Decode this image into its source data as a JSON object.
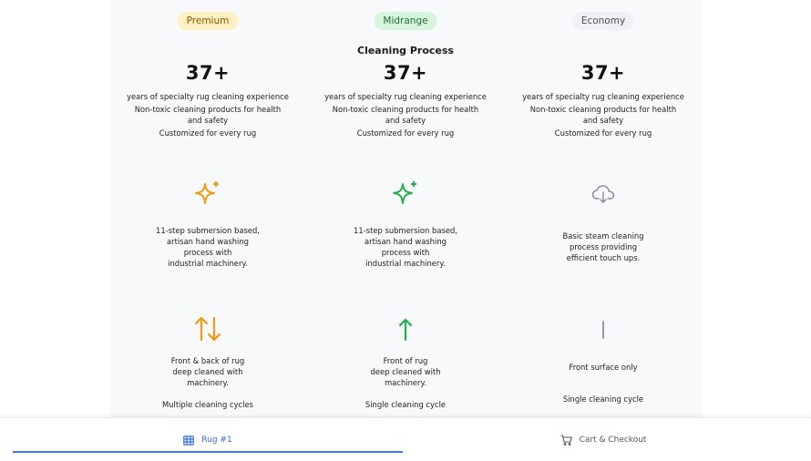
{
  "tiers": [
    {
      "badge": "Premium",
      "stat": "37+",
      "features": [
        "years of specialty rug cleaning experience",
        "Non-toxic cleaning products for health and safety",
        "Customized for every rug"
      ],
      "process_icon": "sparkles-icon",
      "process_color": "#f29a12",
      "process_desc": [
        "11-step submersion based,",
        "artisan hand washing",
        "process with",
        "industrial machinery."
      ],
      "surface_icon": "arrows-up-down-icon",
      "surface_desc": [
        "Front & back of rug",
        "deep cleaned with",
        "machinery."
      ],
      "cycles": "Multiple cleaning cycles"
    },
    {
      "badge": "Midrange",
      "stat": "37+",
      "features": [
        "years of specialty rug cleaning experience",
        "Non-toxic cleaning products for health and safety",
        "Customized for every rug"
      ],
      "process_icon": "sparkles-icon",
      "process_color": "#22b14c",
      "process_desc": [
        "11-step submersion based,",
        "artisan hand washing",
        "process with",
        "industrial machinery."
      ],
      "surface_icon": "arrow-up-icon",
      "surface_desc": [
        "Front of rug",
        "deep cleaned with",
        "machinery."
      ],
      "cycles": "Single cleaning cycle"
    },
    {
      "badge": "Economy",
      "stat": "37+",
      "features": [
        "years of specialty rug cleaning experience",
        "Non-toxic cleaning products for health and safety",
        "Customized for every rug"
      ],
      "process_icon": "cloud-download-icon",
      "process_color": "#8b8f95",
      "process_desc": [
        "Basic steam cleaning",
        "process providing",
        "efficient touch ups."
      ],
      "surface_icon": "vertical-line-icon",
      "surface_desc": [
        "Front surface only"
      ],
      "cycles": "Single cleaning cycle"
    }
  ],
  "section_title": "Cleaning Process",
  "footer": {
    "rug_tab": "Rug #1",
    "rug_tab_icon": "grid-list-icon",
    "cart_tab": "Cart & Checkout",
    "cart_tab_icon": "cart-icon",
    "accent": "#2e6be6"
  }
}
